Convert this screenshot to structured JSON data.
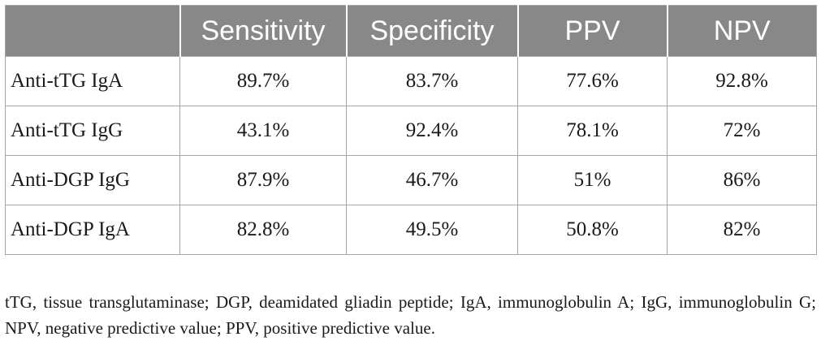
{
  "table": {
    "headers": [
      "",
      "Sensitivity",
      "Specificity",
      "PPV",
      "NPV"
    ],
    "rows": [
      {
        "label": "Anti-tTG IgA",
        "values": [
          "89.7%",
          "83.7%",
          "77.6%",
          "92.8%"
        ]
      },
      {
        "label": "Anti-tTG IgG",
        "values": [
          "43.1%",
          "92.4%",
          "78.1%",
          "72%"
        ]
      },
      {
        "label": "Anti-DGP IgG",
        "values": [
          "87.9%",
          "46.7%",
          "51%",
          "86%"
        ]
      },
      {
        "label": "Anti-DGP IgA",
        "values": [
          "82.8%",
          "49.5%",
          "50.8%",
          "82%"
        ]
      }
    ]
  },
  "footnote": "tTG, tissue transglutaminase; DGP, deamidated gliadin peptide; IgA, immunoglobulin A; IgG, immunoglobulin G; NPV, negative predictive value; PPV, positive predictive value.",
  "colors": {
    "header_bg": "#888888",
    "header_text": "#ffffff",
    "border": "#a6a6a6",
    "text": "#1a1a1a"
  }
}
